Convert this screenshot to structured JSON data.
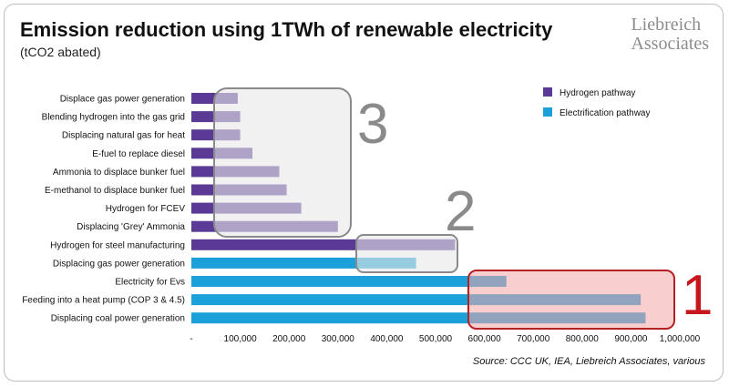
{
  "title": "Emission reduction using 1TWh of renewable electricity",
  "subtitle": "(tCO2 abated)",
  "brand": {
    "line1": "Liebreich",
    "line2": "Associates"
  },
  "source": "Source: CCC UK, IEA, Liebreich Associates, various",
  "colors": {
    "hydrogen": "#5b3a96",
    "electrification": "#1ca0d9",
    "callout_grey_fill": "#e8e8e8",
    "callout_grey_border": "#8a8a8a",
    "callout_red_fill": "#f4a6a6",
    "callout_red_border": "#b52025"
  },
  "callouts": [
    {
      "label": "3",
      "color": "#8a8a8a"
    },
    {
      "label": "2",
      "color": "#8a8a8a"
    },
    {
      "label": "1",
      "color": "#c8161d"
    }
  ],
  "chart_data": {
    "type": "bar",
    "orientation": "horizontal",
    "categories": [
      "Displace gas power generation",
      "Blending hydrogen into the gas grid",
      "Displacing natural gas for heat",
      "E-fuel to replace diesel",
      "Ammonia to displace bunker fuel",
      "E-methanol to displace bunker fuel",
      "Hydrogen for FCEV",
      "Displacing 'Grey' Ammonia",
      "Hydrogen for steel manufacturing",
      "Displacing gas power generation",
      "Electricity for Evs",
      "Feeding into a heat pump (COP 3 & 4.5)",
      "Displacing coal power generation"
    ],
    "series": [
      {
        "name": "Hydrogen pathway",
        "values": [
          95000,
          100000,
          100000,
          125000,
          180000,
          195000,
          225000,
          300000,
          540000,
          null,
          null,
          null,
          null
        ]
      },
      {
        "name": "Electrification pathway",
        "values": [
          null,
          null,
          null,
          null,
          null,
          null,
          null,
          null,
          null,
          460000,
          645000,
          920000,
          930000
        ]
      }
    ],
    "xticks": [
      "-",
      "100,000",
      "200,000",
      "300,000",
      "400,000",
      "500,000",
      "600,000",
      "700,000",
      "800,000",
      "900,000",
      "1,000,000"
    ],
    "xlim": [
      0,
      1000000
    ],
    "legend_position": "top-right",
    "grid": false
  }
}
